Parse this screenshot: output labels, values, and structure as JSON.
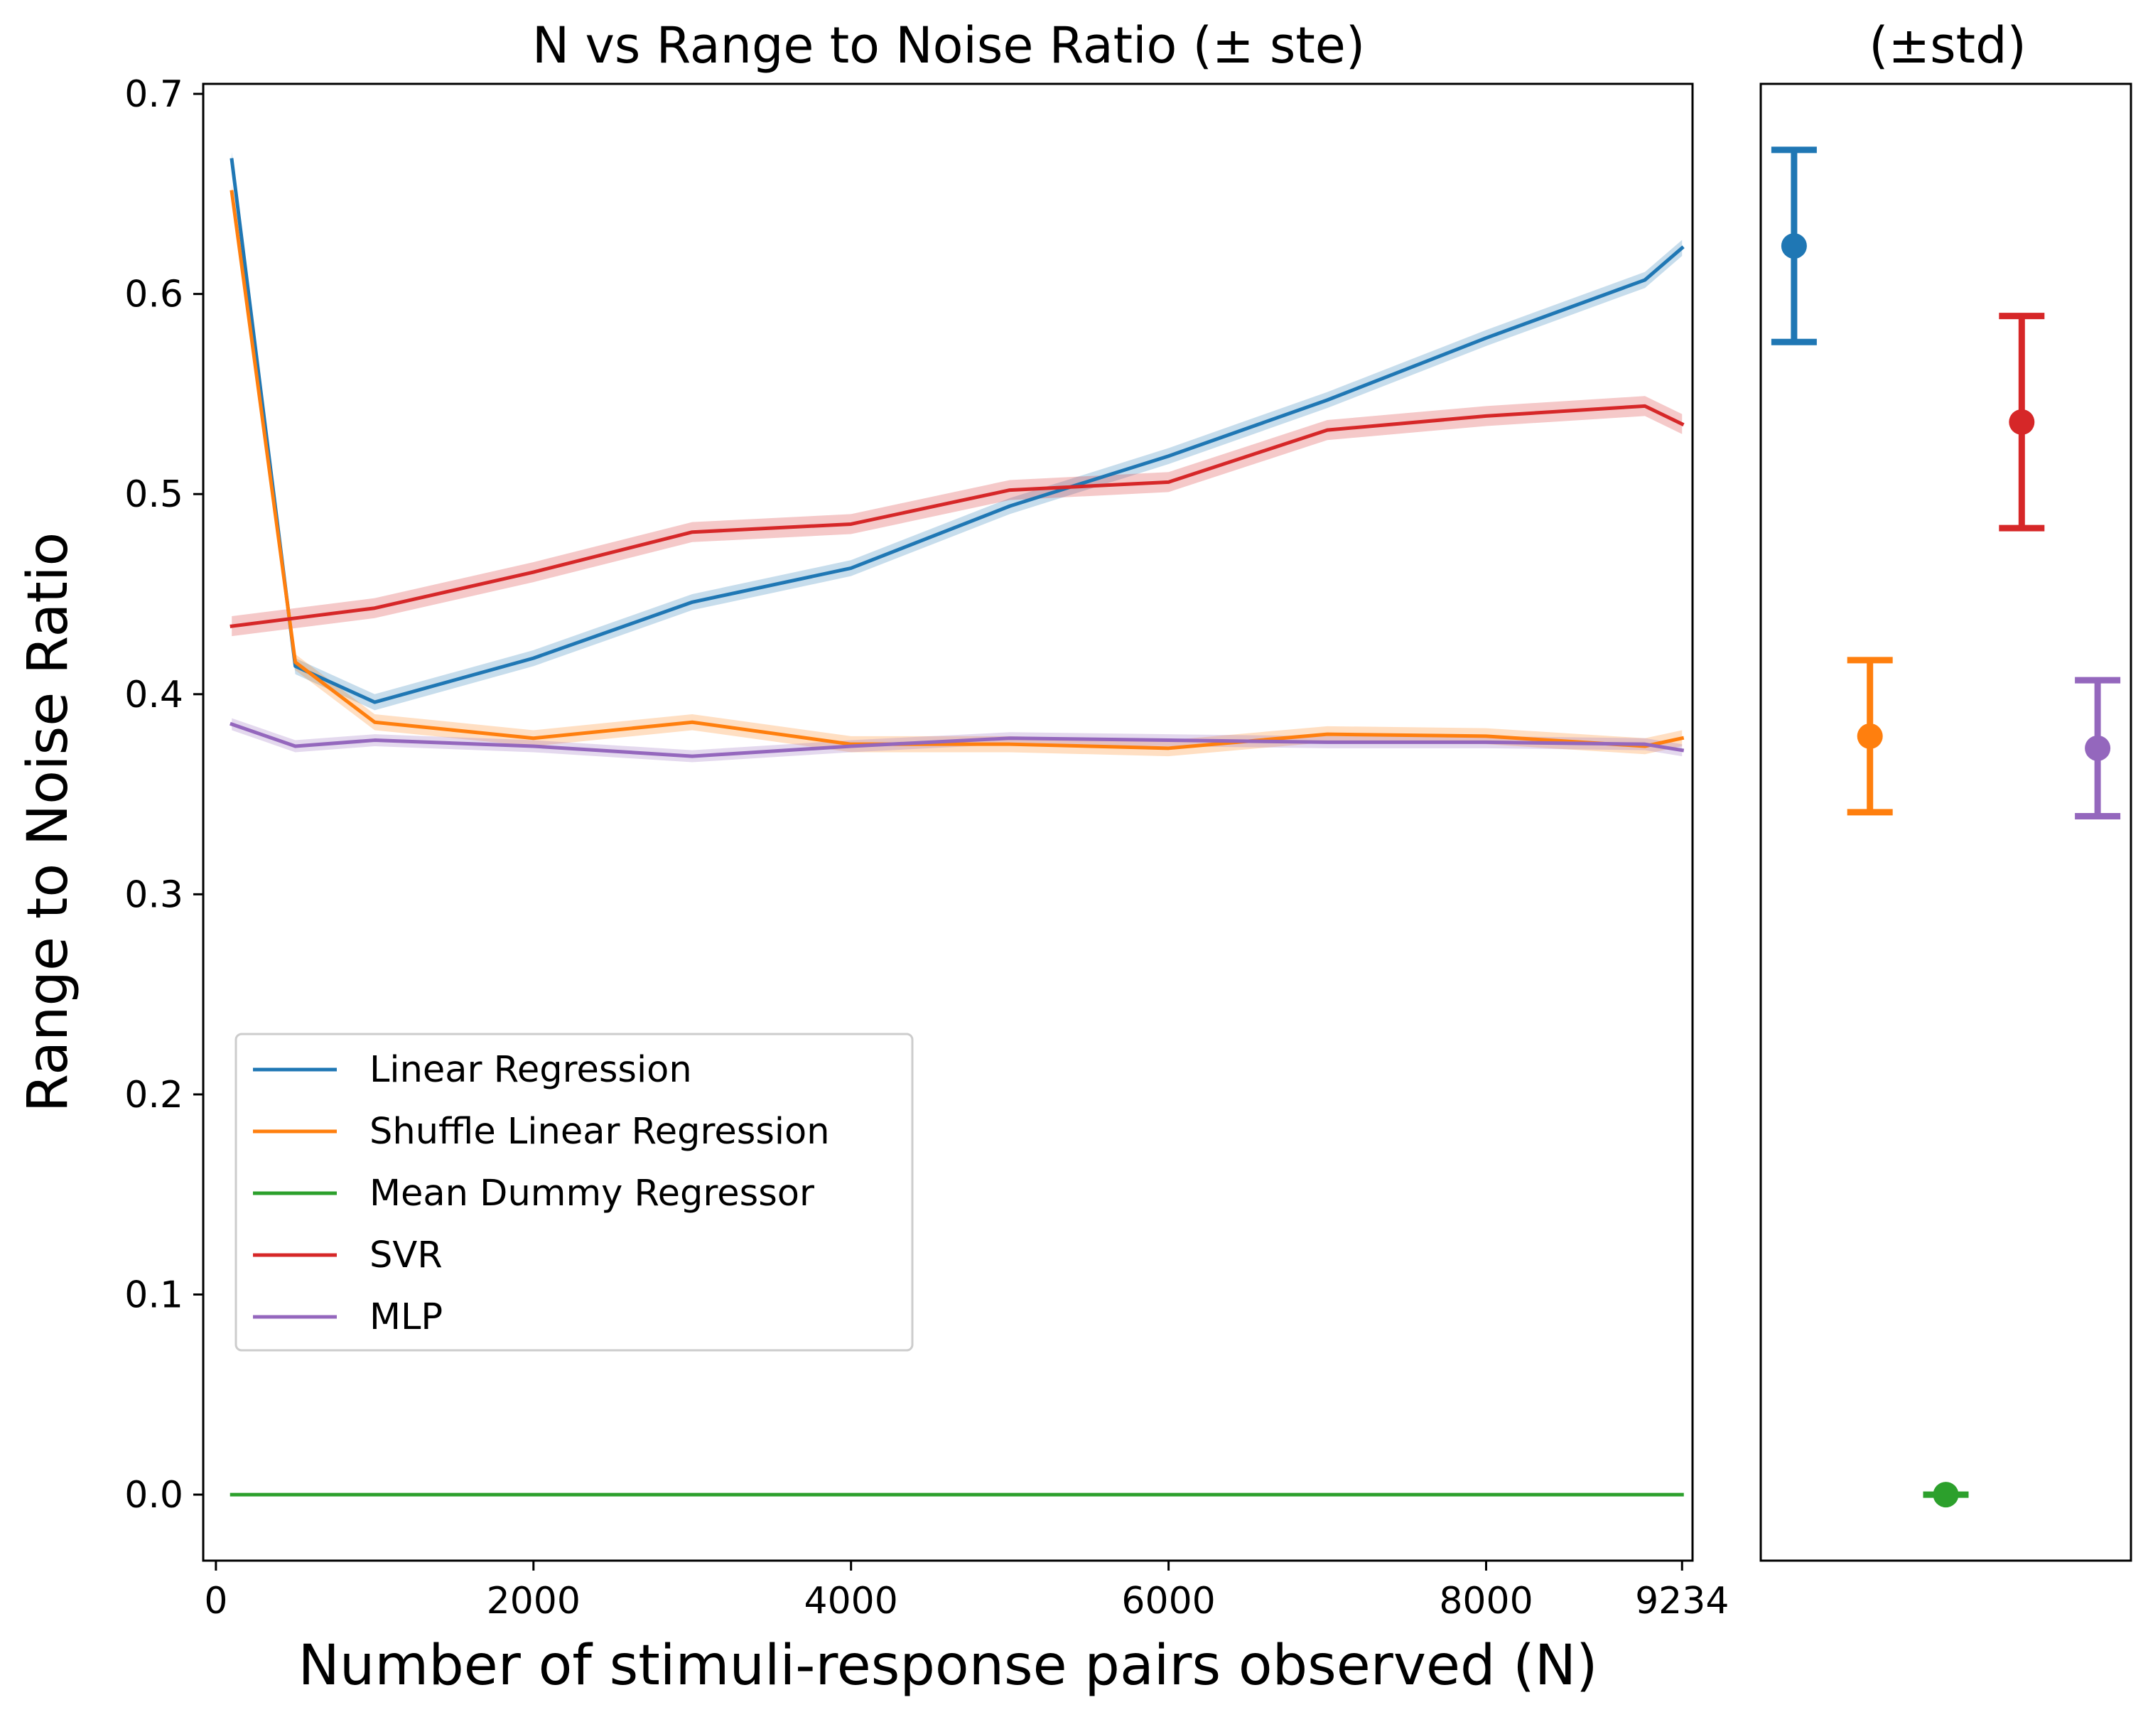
{
  "chart_data": [
    {
      "type": "line",
      "title": "N vs Range to Noise Ratio (± ste)",
      "xlabel": "Number of stimuli-response pairs observed (N)",
      "ylabel": "Range to Noise Ratio",
      "xlim": [
        -80,
        9300
      ],
      "ylim": [
        -0.033,
        0.705
      ],
      "xticks": [
        0,
        2000,
        4000,
        6000,
        8000,
        9234
      ],
      "xtick_labels": [
        "0",
        "2000",
        "4000",
        "6000",
        "8000",
        "9234"
      ],
      "yticks": [
        0.0,
        0.1,
        0.2,
        0.3,
        0.4,
        0.5,
        0.6,
        0.7
      ],
      "ytick_labels": [
        "0.0",
        "0.1",
        "0.2",
        "0.3",
        "0.4",
        "0.5",
        "0.6",
        "0.7"
      ],
      "grid": false,
      "legend_position": "lower-left",
      "x": [
        100,
        500,
        1000,
        2000,
        3000,
        4000,
        5000,
        6000,
        7000,
        8000,
        9000,
        9234
      ],
      "series": [
        {
          "name": "Linear Regression",
          "color": "#1f77b4",
          "values": [
            0.667,
            0.414,
            0.396,
            0.418,
            0.446,
            0.463,
            0.494,
            0.519,
            0.547,
            0.578,
            0.607,
            0.623
          ],
          "band": 0.004
        },
        {
          "name": "Shuffle Linear Regression",
          "color": "#ff7f0e",
          "values": [
            0.651,
            0.416,
            0.386,
            0.378,
            0.386,
            0.375,
            0.375,
            0.373,
            0.38,
            0.379,
            0.374,
            0.378
          ],
          "band": 0.004
        },
        {
          "name": "Mean Dummy Regressor",
          "color": "#2ca02c",
          "values": [
            0.0,
            0.0,
            0.0,
            0.0,
            0.0,
            0.0,
            0.0,
            0.0,
            0.0,
            0.0,
            0.0,
            0.0
          ],
          "band": 0.0
        },
        {
          "name": "SVR",
          "color": "#d62728",
          "values": [
            0.434,
            0.438,
            0.443,
            0.461,
            0.481,
            0.485,
            0.502,
            0.506,
            0.532,
            0.539,
            0.544,
            0.535
          ],
          "band": 0.005
        },
        {
          "name": "MLP",
          "color": "#9467bd",
          "values": [
            0.385,
            0.374,
            0.377,
            0.374,
            0.369,
            0.374,
            0.378,
            0.377,
            0.376,
            0.376,
            0.375,
            0.372
          ],
          "band": 0.003
        }
      ]
    },
    {
      "type": "errorbar",
      "title": "(±std)",
      "ylim": [
        -0.033,
        0.705
      ],
      "series": [
        {
          "name": "Linear Regression",
          "color": "#1f77b4",
          "position": 1,
          "value": 0.624,
          "std": 0.048
        },
        {
          "name": "Shuffle Linear Regression",
          "color": "#ff7f0e",
          "position": 2,
          "value": 0.379,
          "std": 0.038
        },
        {
          "name": "Mean Dummy Regressor",
          "color": "#2ca02c",
          "position": 3,
          "value": 0.0,
          "std": 0.0
        },
        {
          "name": "SVR",
          "color": "#d62728",
          "position": 4,
          "value": 0.536,
          "std": 0.053
        },
        {
          "name": "MLP",
          "color": "#9467bd",
          "position": 5,
          "value": 0.373,
          "std": 0.034
        }
      ]
    }
  ]
}
